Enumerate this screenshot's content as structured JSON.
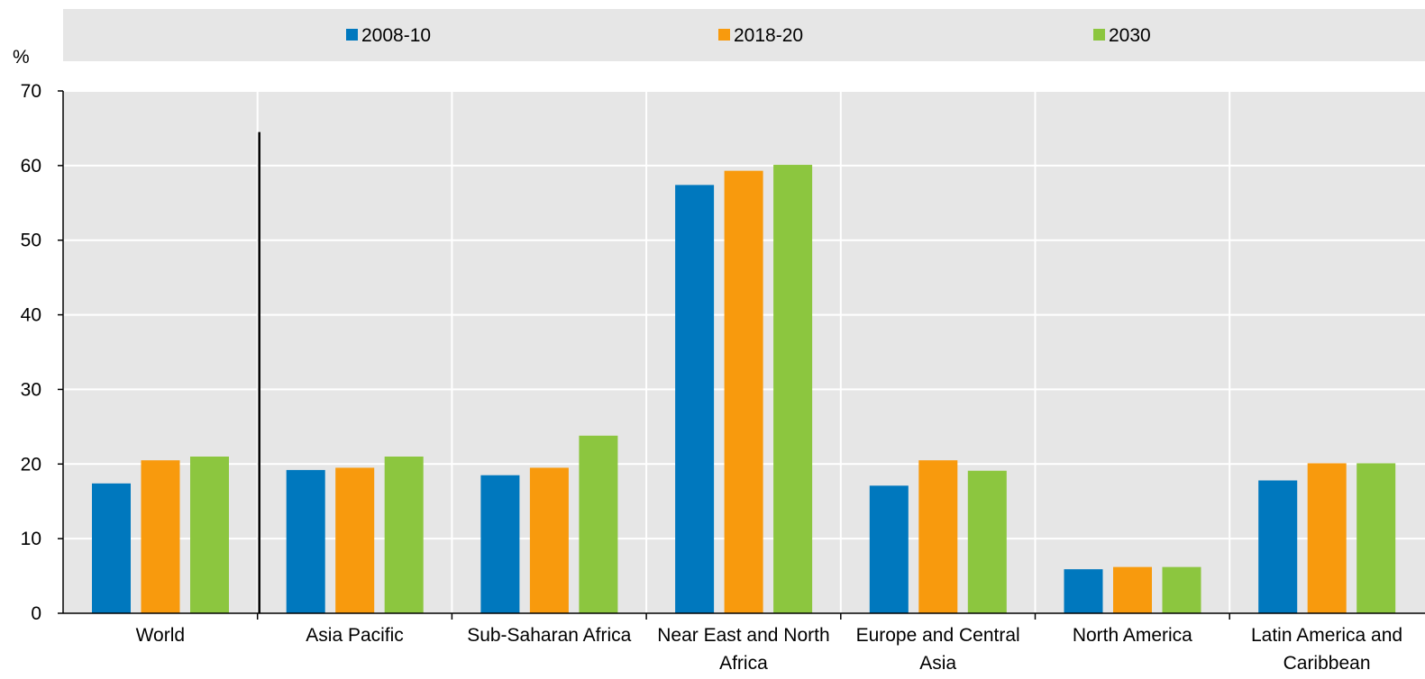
{
  "chart_data": {
    "type": "bar",
    "ylabel": "%",
    "ylim": [
      0,
      70
    ],
    "yticks": [
      0,
      10,
      20,
      30,
      40,
      50,
      60,
      70
    ],
    "grid": true,
    "legend_position": "top",
    "categories": [
      [
        "World"
      ],
      [
        "Asia Pacific"
      ],
      [
        "Sub-Saharan Africa"
      ],
      [
        "Near East and North",
        "Africa"
      ],
      [
        "Europe and Central",
        "Asia"
      ],
      [
        "North America"
      ],
      [
        "Latin America and",
        "Caribbean"
      ]
    ],
    "series": [
      {
        "name": "2008-10",
        "color": "#0078be",
        "values": [
          17.4,
          19.2,
          18.5,
          57.4,
          17.1,
          5.9,
          17.8
        ]
      },
      {
        "name": "2018-20",
        "color": "#f89a0d",
        "values": [
          20.5,
          19.5,
          19.5,
          59.3,
          20.5,
          6.2,
          20.1
        ]
      },
      {
        "name": "2030",
        "color": "#8cc63f",
        "values": [
          21.0,
          21.0,
          23.8,
          60.1,
          19.1,
          6.2,
          20.1
        ]
      }
    ],
    "separator_after_category": 0,
    "colors": {
      "plot_background": "#e6e6e6",
      "legend_background": "#e6e6e6",
      "gridline": "#ffffff",
      "axis": "#000000"
    }
  }
}
